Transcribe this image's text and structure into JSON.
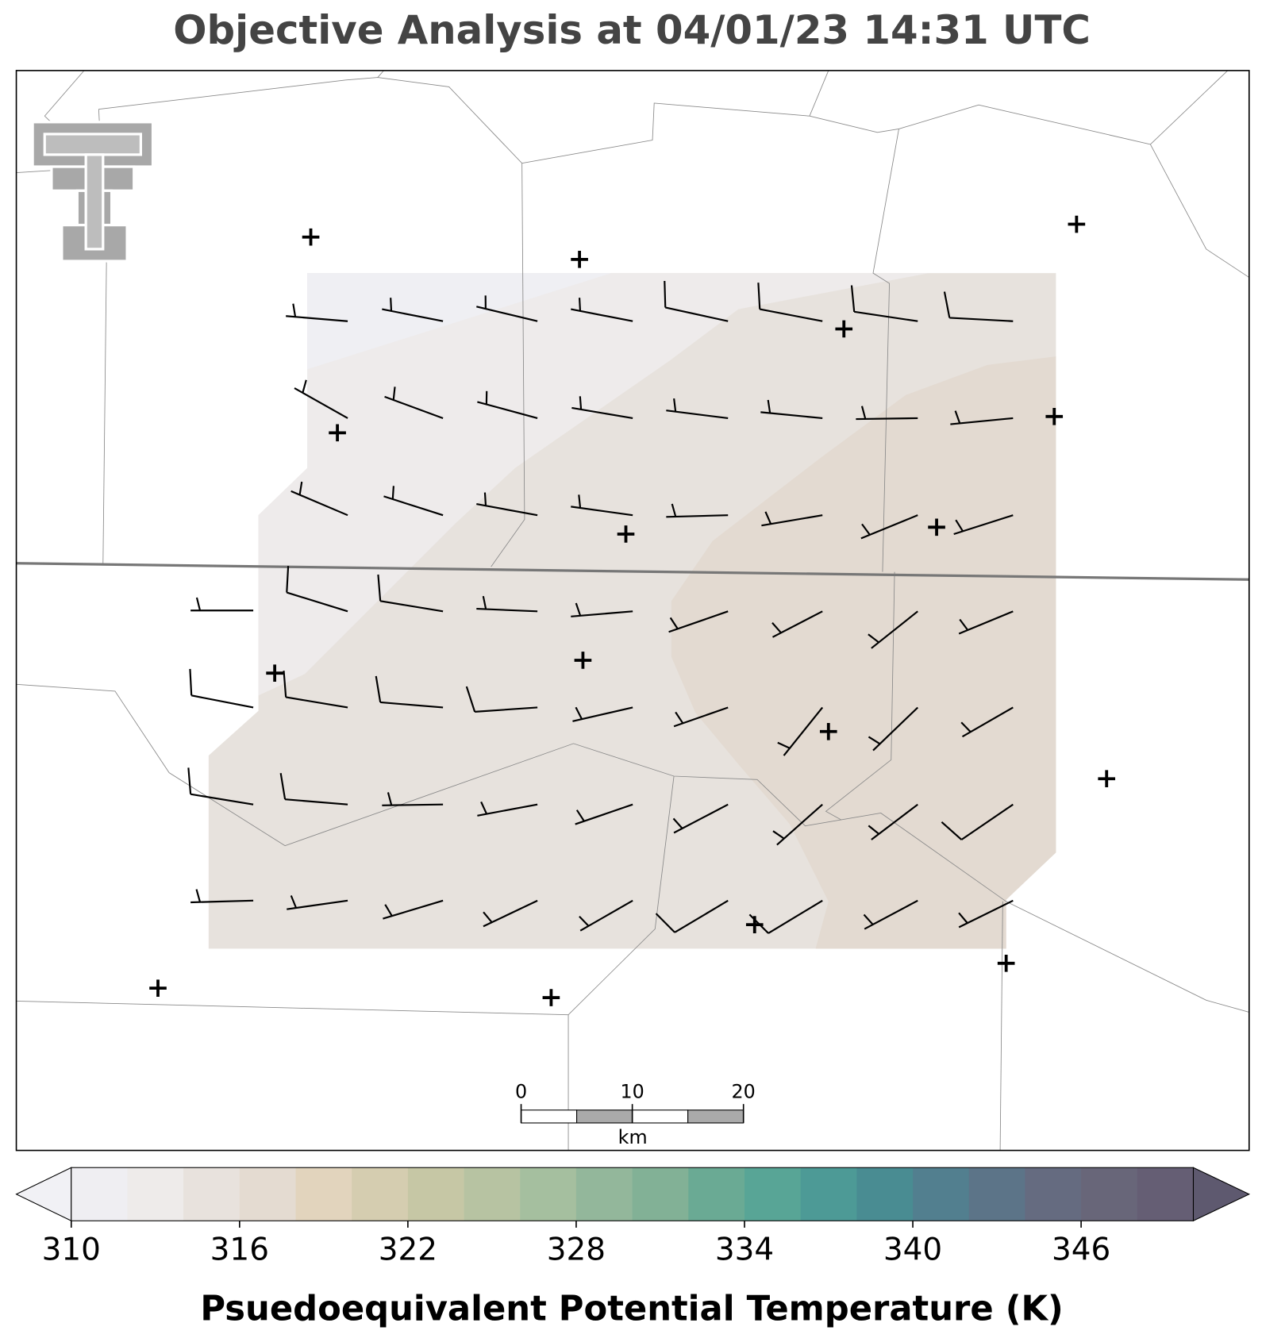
{
  "title": "Objective Analysis at 04/01/23 14:31 UTC",
  "scale_bar": {
    "ticks": [
      0,
      10,
      20
    ],
    "unit": "km"
  },
  "colorbar": {
    "label": "Psuedoequivalent Potential Temperature (K)",
    "lim": [
      310,
      350
    ],
    "ticks": [
      310,
      316,
      322,
      328,
      334,
      340,
      346
    ],
    "levels": [
      310,
      312,
      314,
      316,
      318,
      320,
      322,
      324,
      326,
      328,
      330,
      332,
      334,
      336,
      338,
      340,
      342,
      344,
      346,
      348,
      350
    ],
    "colors": [
      "#efeef2",
      "#eeebea",
      "#e8e2dd",
      "#e4dbd1",
      "#e2d4bd",
      "#d5cdb0",
      "#c6c7a5",
      "#b7c3a2",
      "#a5bf9f",
      "#93b79b",
      "#82b196",
      "#6aaa94",
      "#58a596",
      "#4d9a96",
      "#498c92",
      "#527f8f",
      "#5c7488",
      "#656b80",
      "#686679",
      "#655e74"
    ],
    "under_color": "#f1f1f5",
    "over_color": "#5e596f"
  }
}
